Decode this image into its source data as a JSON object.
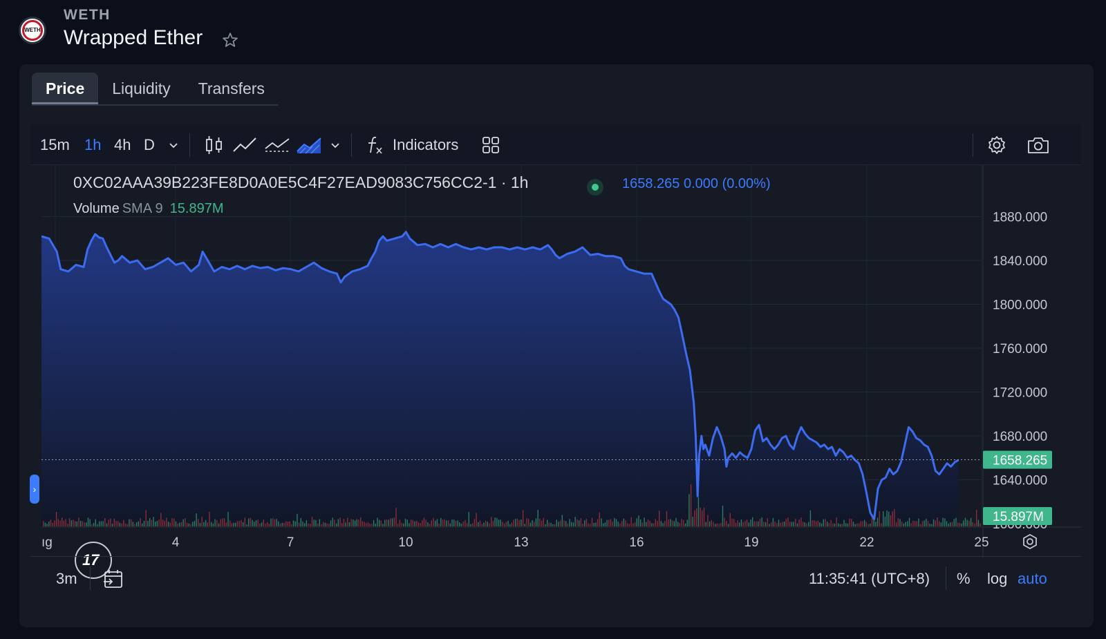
{
  "token": {
    "logo_text": "WETH",
    "symbol": "WETH",
    "name": "Wrapped Ether",
    "star_icon": "star-icon"
  },
  "tabs": [
    {
      "label": "Price",
      "active": true
    },
    {
      "label": "Liquidity",
      "active": false
    },
    {
      "label": "Transfers",
      "active": false
    }
  ],
  "toolbar": {
    "intervals": [
      {
        "label": "15m",
        "selected": false
      },
      {
        "label": "1h",
        "selected": true
      },
      {
        "label": "4h",
        "selected": false
      },
      {
        "label": "D",
        "selected": false
      }
    ],
    "interval_menu_icon": "chevron-down-icon",
    "chart_style_icons": [
      "candles-icon",
      "line-icon",
      "line-markers-icon",
      "area-icon"
    ],
    "style_menu_icon": "chevron-down-icon",
    "indicators_label": "Indicators",
    "indicators_icon": "function-icon",
    "layout_icon": "grid-layout-icon",
    "settings_icon": "gear-icon",
    "snapshot_icon": "camera-icon"
  },
  "legend": {
    "symbol_text": "0XC02AAA39B223FE8D0A0E5C4F27EAD9083C756CC2-1 · 1h",
    "price_text": "1658.265  0.000 (0.00%)",
    "volume_label": "Volume",
    "volume_sma": "SMA 9",
    "volume_value": "15.897M"
  },
  "colors": {
    "line": "#3d6cf0",
    "area_top": "#233a8a",
    "area_bottom": "#101628",
    "price_badge": "#3fb68b",
    "accent": "#3d7bff",
    "vol_up": "#2f8f70",
    "vol_down": "#a0313a"
  },
  "chart_data": {
    "type": "area",
    "y_ticks": [
      "1880.000",
      "1840.000",
      "1800.000",
      "1760.000",
      "1720.000",
      "1680.000",
      "1640.000",
      "1600.000"
    ],
    "ylim": [
      1590,
      1896
    ],
    "x_ticks": [
      "ıg",
      "4",
      "7",
      "10",
      "13",
      "16",
      "19",
      "22",
      "25"
    ],
    "last_price": 1658.265,
    "last_price_label": "1658.265",
    "volume_label": "15.897M",
    "points": [
      [
        0,
        1862
      ],
      [
        2,
        1860
      ],
      [
        4,
        1848
      ],
      [
        5,
        1832
      ],
      [
        7,
        1830
      ],
      [
        9,
        1836
      ],
      [
        11,
        1834
      ],
      [
        12,
        1850
      ],
      [
        13,
        1858
      ],
      [
        14,
        1864
      ],
      [
        15,
        1861
      ],
      [
        16,
        1860
      ],
      [
        17,
        1852
      ],
      [
        18,
        1845
      ],
      [
        19,
        1838
      ],
      [
        20,
        1840
      ],
      [
        21,
        1844
      ],
      [
        23,
        1838
      ],
      [
        25,
        1840
      ],
      [
        27,
        1832
      ],
      [
        29,
        1834
      ],
      [
        31,
        1838
      ],
      [
        33,
        1842
      ],
      [
        35,
        1836
      ],
      [
        37,
        1838
      ],
      [
        39,
        1830
      ],
      [
        41,
        1836
      ],
      [
        42,
        1848
      ],
      [
        43,
        1842
      ],
      [
        45,
        1830
      ],
      [
        47,
        1834
      ],
      [
        49,
        1832
      ],
      [
        51,
        1835
      ],
      [
        53,
        1832
      ],
      [
        55,
        1835
      ],
      [
        57,
        1833
      ],
      [
        59,
        1834
      ],
      [
        61,
        1831
      ],
      [
        63,
        1833
      ],
      [
        65,
        1832
      ],
      [
        67,
        1830
      ],
      [
        69,
        1834
      ],
      [
        71,
        1838
      ],
      [
        73,
        1833
      ],
      [
        75,
        1830
      ],
      [
        77,
        1828
      ],
      [
        78,
        1820
      ],
      [
        79,
        1825
      ],
      [
        81,
        1830
      ],
      [
        83,
        1832
      ],
      [
        85,
        1835
      ],
      [
        86,
        1842
      ],
      [
        87,
        1848
      ],
      [
        88,
        1858
      ],
      [
        89,
        1862
      ],
      [
        90,
        1858
      ],
      [
        92,
        1860
      ],
      [
        94,
        1862
      ],
      [
        95,
        1866
      ],
      [
        96,
        1860
      ],
      [
        98,
        1854
      ],
      [
        100,
        1855
      ],
      [
        102,
        1852
      ],
      [
        104,
        1855
      ],
      [
        106,
        1852
      ],
      [
        108,
        1855
      ],
      [
        110,
        1852
      ],
      [
        112,
        1850
      ],
      [
        114,
        1852
      ],
      [
        116,
        1850
      ],
      [
        118,
        1852
      ],
      [
        120,
        1852
      ],
      [
        122,
        1850
      ],
      [
        124,
        1852
      ],
      [
        126,
        1850
      ],
      [
        128,
        1852
      ],
      [
        130,
        1850
      ],
      [
        132,
        1854
      ],
      [
        133,
        1850
      ],
      [
        134,
        1845
      ],
      [
        135,
        1842
      ],
      [
        137,
        1846
      ],
      [
        139,
        1848
      ],
      [
        141,
        1852
      ],
      [
        143,
        1845
      ],
      [
        145,
        1846
      ],
      [
        147,
        1844
      ],
      [
        149,
        1844
      ],
      [
        151,
        1842
      ],
      [
        152,
        1835
      ],
      [
        153,
        1832
      ],
      [
        155,
        1830
      ],
      [
        157,
        1828
      ],
      [
        159,
        1828
      ],
      [
        160,
        1820
      ],
      [
        161,
        1812
      ],
      [
        162,
        1805
      ],
      [
        164,
        1800
      ],
      [
        165,
        1795
      ],
      [
        166,
        1788
      ],
      [
        167,
        1772
      ],
      [
        168,
        1755
      ],
      [
        169,
        1740
      ],
      [
        169.5,
        1725
      ],
      [
        170,
        1710
      ],
      [
        170.5,
        1680
      ],
      [
        171,
        1625
      ],
      [
        171.4,
        1662
      ],
      [
        172,
        1680
      ],
      [
        172.5,
        1668
      ],
      [
        173,
        1672
      ],
      [
        174,
        1662
      ],
      [
        175,
        1678
      ],
      [
        176,
        1688
      ],
      [
        177,
        1680
      ],
      [
        178,
        1668
      ],
      [
        178.5,
        1652
      ],
      [
        179,
        1660
      ],
      [
        180,
        1664
      ],
      [
        181,
        1660
      ],
      [
        182,
        1665
      ],
      [
        183,
        1662
      ],
      [
        184,
        1660
      ],
      [
        185,
        1668
      ],
      [
        186,
        1685
      ],
      [
        187,
        1690
      ],
      [
        188,
        1675
      ],
      [
        189,
        1678
      ],
      [
        190,
        1672
      ],
      [
        191,
        1668
      ],
      [
        192,
        1672
      ],
      [
        193,
        1678
      ],
      [
        194,
        1680
      ],
      [
        195,
        1672
      ],
      [
        196,
        1668
      ],
      [
        197,
        1680
      ],
      [
        198,
        1688
      ],
      [
        199,
        1682
      ],
      [
        200,
        1678
      ],
      [
        201,
        1676
      ],
      [
        202,
        1674
      ],
      [
        203,
        1670
      ],
      [
        204,
        1672
      ],
      [
        205,
        1668
      ],
      [
        206,
        1670
      ],
      [
        207,
        1662
      ],
      [
        208,
        1668
      ],
      [
        209,
        1665
      ],
      [
        210,
        1660
      ],
      [
        211,
        1662
      ],
      [
        212,
        1658
      ],
      [
        213,
        1655
      ],
      [
        214,
        1645
      ],
      [
        215,
        1628
      ],
      [
        216,
        1610
      ],
      [
        217,
        1604
      ],
      [
        218,
        1632
      ],
      [
        219,
        1640
      ],
      [
        220,
        1642
      ],
      [
        221,
        1650
      ],
      [
        222,
        1645
      ],
      [
        223,
        1648
      ],
      [
        224,
        1656
      ],
      [
        225,
        1672
      ],
      [
        226,
        1688
      ],
      [
        227,
        1684
      ],
      [
        228,
        1678
      ],
      [
        229,
        1676
      ],
      [
        230,
        1672
      ],
      [
        231,
        1670
      ],
      [
        232,
        1662
      ],
      [
        233,
        1648
      ],
      [
        234,
        1645
      ],
      [
        235,
        1650
      ],
      [
        236,
        1655
      ],
      [
        237,
        1652
      ],
      [
        238,
        1656
      ],
      [
        239,
        1658
      ]
    ],
    "xlim": [
      0,
      245
    ]
  }
}
